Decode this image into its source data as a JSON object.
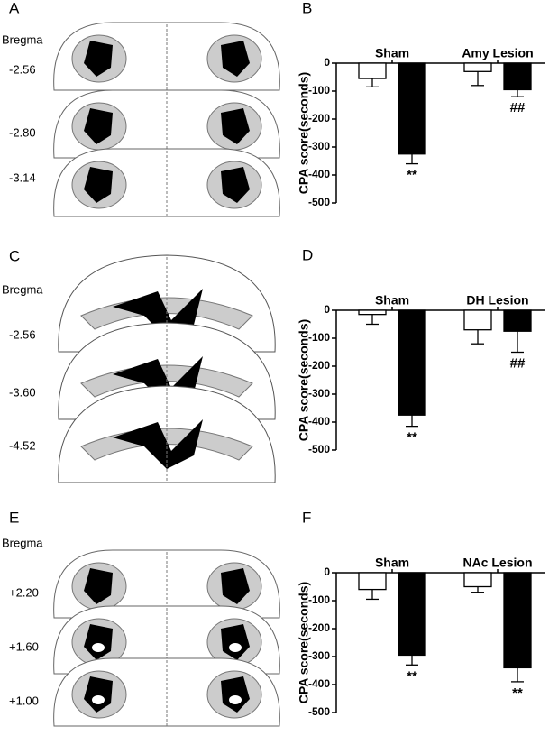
{
  "panels": [
    {
      "label": "A",
      "heading": "Bregma",
      "levels": [
        "-2.56",
        "-2.80",
        "-3.14"
      ]
    },
    {
      "label": "C",
      "heading": "Bregma",
      "levels": [
        "-2.56",
        "-3.60",
        "-4.52"
      ]
    },
    {
      "label": "E",
      "heading": "Bregma",
      "levels": [
        "+2.20",
        "+1.60",
        "+1.00"
      ]
    }
  ],
  "chart_data": [
    {
      "type": "bar",
      "panel": "B",
      "ylabel": "CPA score(seconds)",
      "categories": [
        "Sham",
        "Amy Lesion"
      ],
      "series": [
        {
          "color": "#ffffff",
          "values": [
            -55,
            -30
          ],
          "errors": [
            30,
            50
          ],
          "annotations": [
            null,
            null
          ]
        },
        {
          "color": "#000000",
          "values": [
            -325,
            -95
          ],
          "errors": [
            35,
            25
          ],
          "annotations": [
            "**",
            "##"
          ]
        }
      ],
      "ylim": [
        -500,
        0
      ],
      "yticks": [
        0,
        -100,
        -200,
        -300,
        -400,
        -500
      ]
    },
    {
      "type": "bar",
      "panel": "D",
      "ylabel": "CPA score(seconds)",
      "categories": [
        "Sham",
        "DH Lesion"
      ],
      "series": [
        {
          "color": "#ffffff",
          "values": [
            -15,
            -70
          ],
          "errors": [
            35,
            50
          ],
          "annotations": [
            null,
            null
          ]
        },
        {
          "color": "#000000",
          "values": [
            -375,
            -75
          ],
          "errors": [
            40,
            75
          ],
          "annotations": [
            "**",
            "##"
          ]
        }
      ],
      "ylim": [
        -500,
        0
      ],
      "yticks": [
        0,
        -100,
        -200,
        -300,
        -400,
        -500
      ]
    },
    {
      "type": "bar",
      "panel": "F",
      "ylabel": "CPA score(seconds)",
      "categories": [
        "Sham",
        "NAc Lesion"
      ],
      "series": [
        {
          "color": "#ffffff",
          "values": [
            -60,
            -50
          ],
          "errors": [
            35,
            20
          ],
          "annotations": [
            null,
            null
          ]
        },
        {
          "color": "#000000",
          "values": [
            -295,
            -340
          ],
          "errors": [
            35,
            50
          ],
          "annotations": [
            "**",
            "**"
          ]
        }
      ],
      "ylim": [
        -500,
        0
      ],
      "yticks": [
        0,
        -100,
        -200,
        -300,
        -400,
        -500
      ]
    }
  ]
}
